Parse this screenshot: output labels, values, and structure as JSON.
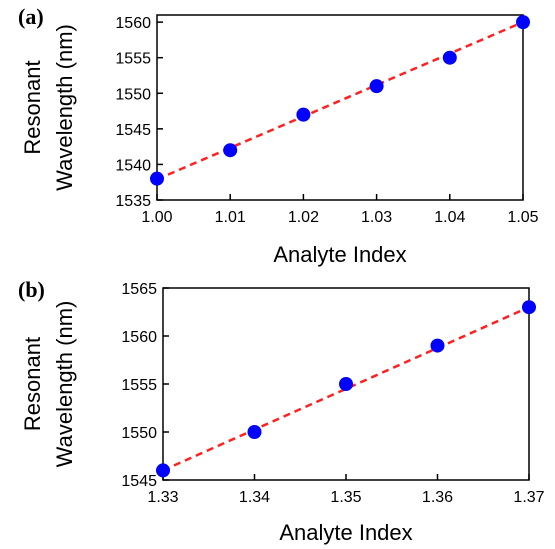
{
  "chart_data": [
    {
      "panel": "(a)",
      "type": "scatter",
      "xlabel": "Analyte Index",
      "ylabel_lines": [
        "Resonant",
        "Wavelength (nm)"
      ],
      "x": [
        1.0,
        1.01,
        1.02,
        1.03,
        1.04,
        1.05
      ],
      "y": [
        1538,
        1542,
        1547,
        1551,
        1555,
        1560
      ],
      "fit": {
        "x": [
          1.0,
          1.05
        ],
        "y": [
          1537.9,
          1560.0
        ]
      },
      "xlim": [
        1.0,
        1.05
      ],
      "ylim": [
        1535,
        1561
      ],
      "xticks": [
        "1.00",
        "1.01",
        "1.02",
        "1.03",
        "1.04",
        "1.05"
      ],
      "xtick_values": [
        1.0,
        1.01,
        1.02,
        1.03,
        1.04,
        1.05
      ],
      "yticks": [
        "1535",
        "1540",
        "1545",
        "1550",
        "1555",
        "1560"
      ],
      "ytick_values": [
        1535,
        1540,
        1545,
        1550,
        1555,
        1560
      ],
      "marker_color": "#0000ff",
      "fit_color": "#ff2020",
      "grid": false
    },
    {
      "panel": "(b)",
      "type": "scatter",
      "xlabel": "Analyte Index",
      "ylabel_lines": [
        "Resonant",
        "Wavelength (nm)"
      ],
      "x": [
        1.33,
        1.34,
        1.35,
        1.36,
        1.37
      ],
      "y": [
        1546,
        1550,
        1555,
        1559,
        1563
      ],
      "fit": {
        "x": [
          1.33,
          1.37
        ],
        "y": [
          1546.0,
          1563.0
        ]
      },
      "xlim": [
        1.33,
        1.37
      ],
      "ylim": [
        1545,
        1565
      ],
      "xticks": [
        "1.33",
        "1.34",
        "1.35",
        "1.36",
        "1.37"
      ],
      "xtick_values": [
        1.33,
        1.34,
        1.35,
        1.36,
        1.37
      ],
      "yticks": [
        "1545",
        "1550",
        "1555",
        "1560",
        "1565"
      ],
      "ytick_values": [
        1545,
        1550,
        1555,
        1560,
        1565
      ],
      "marker_color": "#0000ff",
      "fit_color": "#ff2020",
      "grid": false
    }
  ]
}
